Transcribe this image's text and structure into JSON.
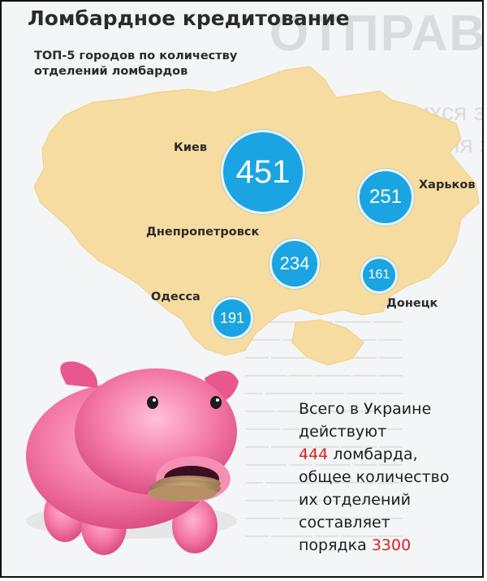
{
  "header": {
    "title": "Ломбардное кредитование",
    "subtitle_line1": "ТОП-5 городов по количеству",
    "subtitle_line2": "отделений ломбардов"
  },
  "cities": [
    {
      "name": "Киев",
      "branches": "451"
    },
    {
      "name": "Харьков",
      "branches": "251"
    },
    {
      "name": "Днепропетровск",
      "branches": "234"
    },
    {
      "name": "Донецк",
      "branches": "161"
    },
    {
      "name": "Одесса",
      "branches": "191"
    }
  ],
  "info": {
    "line1": "Всего в Украине",
    "line2": "действуют",
    "pawnshops_count": "444",
    "line3_suffix": " ломбарда,",
    "line4": "общее количество",
    "line5": "их отделений",
    "line6": "составляет",
    "line7_prefix": "порядка ",
    "total_branches": "3300"
  },
  "colors": {
    "map_fill": "#f6dca0",
    "bubble_fill": "#1aa4e2",
    "accent_red": "#e02020",
    "pig_pink": "#f06a9a"
  }
}
